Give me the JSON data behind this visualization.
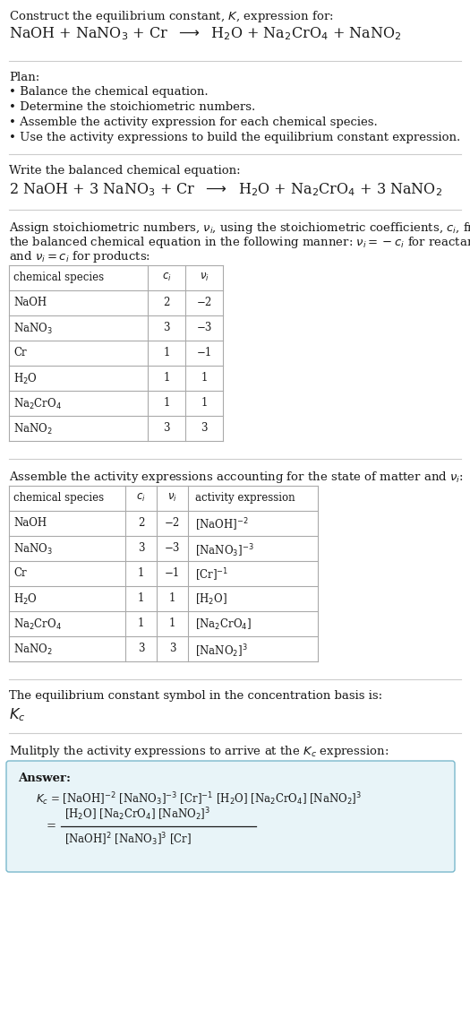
{
  "bg_color": "#ffffff",
  "text_color": "#1a1a1a",
  "table_border": "#aaaaaa",
  "answer_bg": "#e8f4f8",
  "answer_border": "#7ab8cc",
  "fs": 9.5,
  "fs_small": 8.5,
  "title_line1": "Construct the equilibrium constant, $K$, expression for:",
  "title_line2": "NaOH + NaNO$_3$ + Cr  $\\longrightarrow$  H$_2$O + Na$_2$CrO$_4$ + NaNO$_2$",
  "plan_header": "Plan:",
  "plan_items": [
    "Balance the chemical equation.",
    "Determine the stoichiometric numbers.",
    "Assemble the activity expression for each chemical species.",
    "Use the activity expressions to build the equilibrium constant expression."
  ],
  "balanced_header": "Write the balanced chemical equation:",
  "balanced_eq": "2 NaOH + 3 NaNO$_3$ + Cr  $\\longrightarrow$  H$_2$O + Na$_2$CrO$_4$ + 3 NaNO$_2$",
  "stoich_h1": "Assign stoichiometric numbers, $\\nu_i$, using the stoichiometric coefficients, $c_i$, from",
  "stoich_h2": "the balanced chemical equation in the following manner: $\\nu_i = -c_i$ for reactants",
  "stoich_h3": "and $\\nu_i = c_i$ for products:",
  "t1_headers": [
    "chemical species",
    "$c_i$",
    "$\\nu_i$"
  ],
  "t1_rows": [
    [
      "NaOH",
      "2",
      "−2"
    ],
    [
      "NaNO$_3$",
      "3",
      "−3"
    ],
    [
      "Cr",
      "1",
      "−1"
    ],
    [
      "H$_2$O",
      "1",
      "1"
    ],
    [
      "Na$_2$CrO$_4$",
      "1",
      "1"
    ],
    [
      "NaNO$_2$",
      "3",
      "3"
    ]
  ],
  "activity_header": "Assemble the activity expressions accounting for the state of matter and $\\nu_i$:",
  "t2_headers": [
    "chemical species",
    "$c_i$",
    "$\\nu_i$",
    "activity expression"
  ],
  "t2_rows": [
    [
      "NaOH",
      "2",
      "−2",
      "[NaOH]$^{-2}$"
    ],
    [
      "NaNO$_3$",
      "3",
      "−3",
      "[NaNO$_3$]$^{-3}$"
    ],
    [
      "Cr",
      "1",
      "−1",
      "[Cr]$^{-1}$"
    ],
    [
      "H$_2$O",
      "1",
      "1",
      "[H$_2$O]"
    ],
    [
      "Na$_2$CrO$_4$",
      "1",
      "1",
      "[Na$_2$CrO$_4$]"
    ],
    [
      "NaNO$_2$",
      "3",
      "3",
      "[NaNO$_2$]$^3$"
    ]
  ],
  "kc_header": "The equilibrium constant symbol in the concentration basis is:",
  "kc_symbol": "$K_c$",
  "mult_header": "Mulitply the activity expressions to arrive at the $K_c$ expression:",
  "ans_label": "Answer:",
  "ans_line1": "$K_c$ = [NaOH]$^{-2}$ [NaNO$_3$]$^{-3}$ [Cr]$^{-1}$ [H$_2$O] [Na$_2$CrO$_4$] [NaNO$_2$]$^3$",
  "ans_num": "[H$_2$O] [Na$_2$CrO$_4$] [NaNO$_2$]$^3$",
  "ans_den": "[NaOH]$^2$ [NaNO$_3$]$^3$ [Cr]"
}
